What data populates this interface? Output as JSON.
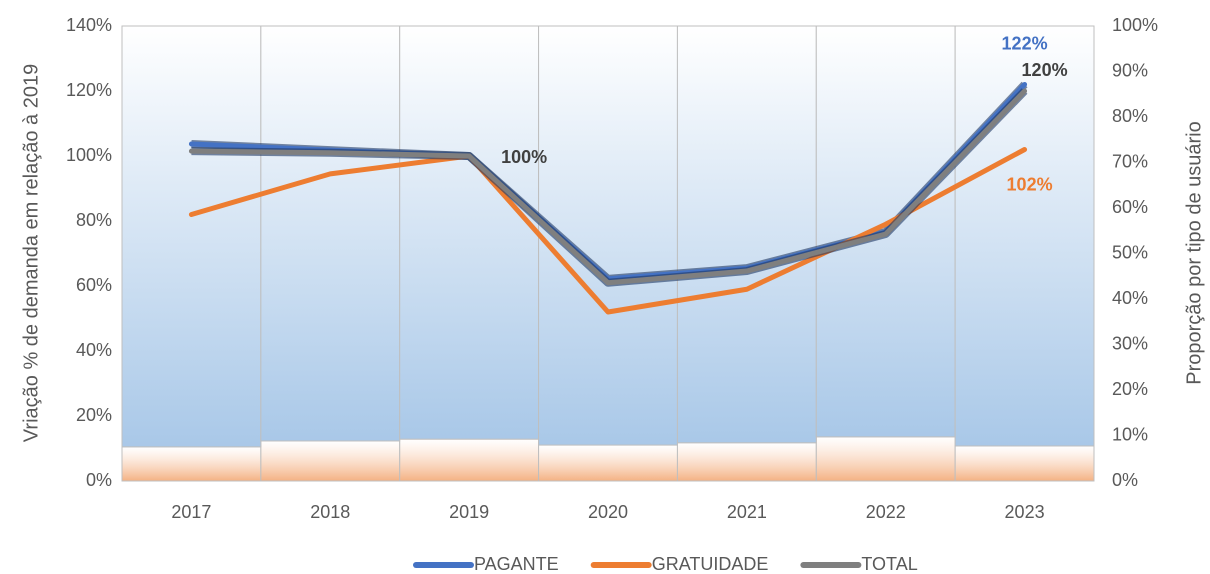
{
  "chart_data": {
    "type": "combo",
    "categories": [
      "2017",
      "2018",
      "2019",
      "2020",
      "2021",
      "2022",
      "2023"
    ],
    "ylabel": "Vriação % de demanda em relação à 2019",
    "y2label": "Proporção por tipo de usuário",
    "ylim": [
      0,
      140
    ],
    "yticks": [
      {
        "value": 0,
        "label": "0%"
      },
      {
        "value": 20,
        "label": "20%"
      },
      {
        "value": 40,
        "label": "40%"
      },
      {
        "value": 60,
        "label": "60%"
      },
      {
        "value": 80,
        "label": "80%"
      },
      {
        "value": 100,
        "label": "100%"
      },
      {
        "value": 120,
        "label": "120%"
      },
      {
        "value": 140,
        "label": "140%"
      }
    ],
    "y2lim": [
      0,
      100
    ],
    "y2ticks": [
      {
        "value": 0,
        "label": "0%"
      },
      {
        "value": 10,
        "label": "10%"
      },
      {
        "value": 20,
        "label": "20%"
      },
      {
        "value": 30,
        "label": "30%"
      },
      {
        "value": 40,
        "label": "40%"
      },
      {
        "value": 50,
        "label": "50%"
      },
      {
        "value": 60,
        "label": "60%"
      },
      {
        "value": 70,
        "label": "70%"
      },
      {
        "value": 80,
        "label": "80%"
      },
      {
        "value": 90,
        "label": "90%"
      },
      {
        "value": 100,
        "label": "100%"
      }
    ],
    "legend": "bottom",
    "bar_series": [
      {
        "type": "bar",
        "axis": "y2",
        "color": "#f4b183",
        "values": [
          7.5,
          8.8,
          9.2,
          7.9,
          8.4,
          9.7,
          7.7
        ]
      },
      {
        "type": "bar",
        "axis": "y2",
        "color": "#a9c8e8",
        "values": [
          92.5,
          91.2,
          90.8,
          92.1,
          91.6,
          90.3,
          92.3
        ]
      }
    ],
    "series": [
      {
        "name": "PAGANTE",
        "type": "line",
        "color": "#4472c4",
        "values": [
          103.7,
          101.8,
          100,
          62.2,
          65.5,
          76.6,
          122
        ],
        "value_labels": [
          null,
          null,
          null,
          null,
          null,
          null,
          "122%"
        ]
      },
      {
        "name": "GRATUIDADE",
        "type": "line",
        "color": "#ed7d31",
        "values": [
          82,
          94.5,
          100,
          52,
          59,
          79,
          102
        ],
        "value_labels": [
          null,
          null,
          null,
          null,
          null,
          null,
          "102%"
        ]
      },
      {
        "name": "TOTAL",
        "type": "line",
        "color": "#7f7f7f",
        "values": [
          101.5,
          101,
          100,
          61,
          64.6,
          76,
          120
        ],
        "value_labels": [
          null,
          null,
          "100%",
          null,
          null,
          null,
          "120%"
        ]
      }
    ]
  }
}
